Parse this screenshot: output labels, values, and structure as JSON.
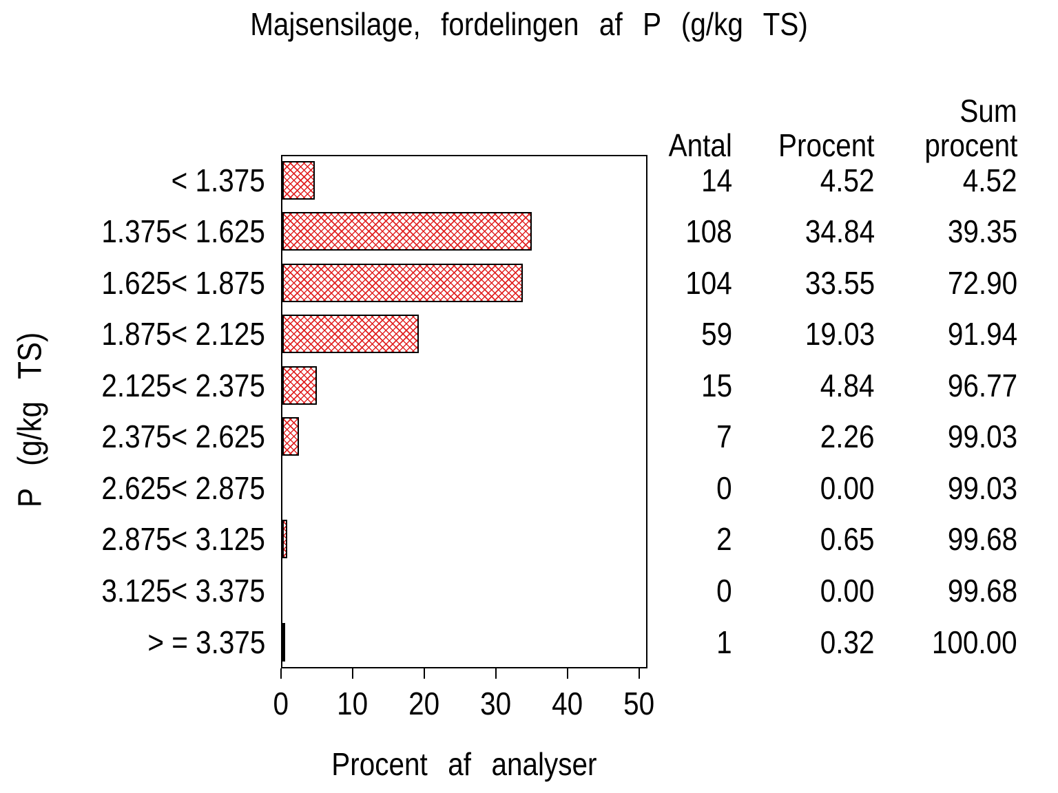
{
  "colors": {
    "bar_hatch": "#e02020",
    "text": "#000000",
    "frame": "#000000",
    "background": "#ffffff"
  },
  "chart_data": {
    "type": "bar",
    "orientation": "horizontal",
    "title": "Majsensilage, fordelingen af P (g/kg TS)",
    "xlabel": "Procent af analyser",
    "ylabel": "P (g/kg TS)",
    "categories": [
      "< 1.375",
      "1.375< 1.625",
      "1.625< 1.875",
      "1.875< 2.125",
      "2.125< 2.375",
      "2.375< 2.625",
      "2.625< 2.875",
      "2.875< 3.125",
      "3.125< 3.375",
      "> = 3.375"
    ],
    "values": [
      4.52,
      34.84,
      33.55,
      19.03,
      4.84,
      2.26,
      0,
      0.65,
      0,
      0.32
    ],
    "xlim": [
      0,
      50
    ],
    "x_ticks": [
      0,
      10,
      20,
      30,
      40,
      50
    ],
    "grid": false,
    "bar_style": "red diagonal crosshatch, black outline",
    "table": {
      "headers": [
        [
          "Antal"
        ],
        [
          "Procent"
        ],
        [
          "Sum",
          "procent"
        ]
      ],
      "rows": [
        [
          "14",
          "4.52",
          "4.52"
        ],
        [
          "108",
          "34.84",
          "39.35"
        ],
        [
          "104",
          "33.55",
          "72.90"
        ],
        [
          "59",
          "19.03",
          "91.94"
        ],
        [
          "15",
          "4.84",
          "96.77"
        ],
        [
          "7",
          "2.26",
          "99.03"
        ],
        [
          "0",
          "0.00",
          "99.03"
        ],
        [
          "2",
          "0.65",
          "99.68"
        ],
        [
          "0",
          "0.00",
          "99.68"
        ],
        [
          "1",
          "0.32",
          "100.00"
        ]
      ]
    }
  }
}
